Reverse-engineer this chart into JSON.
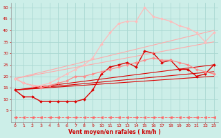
{
  "background_color": "#cceee8",
  "grid_color": "#aad8d2",
  "xlabel": "Vent moyen/en rafales ( km/h )",
  "xlabel_color": "#cc0000",
  "xlim": [
    -0.5,
    23.5
  ],
  "ylim": [
    0,
    52
  ],
  "yticks": [
    5,
    10,
    15,
    20,
    25,
    30,
    35,
    40,
    45,
    50
  ],
  "xticks": [
    0,
    1,
    2,
    3,
    4,
    5,
    6,
    7,
    8,
    9,
    10,
    11,
    12,
    13,
    14,
    15,
    16,
    17,
    18,
    19,
    20,
    21,
    22,
    23
  ],
  "series": [
    {
      "x": [
        0,
        1,
        2,
        3,
        4,
        5,
        6,
        7,
        8,
        9,
        10,
        11,
        12,
        13,
        14,
        15,
        16,
        17,
        18,
        19,
        20,
        21,
        22,
        23
      ],
      "y": [
        14,
        11,
        11,
        9,
        9,
        9,
        9,
        9,
        10,
        14,
        21,
        24,
        25,
        26,
        24,
        31,
        30,
        26,
        27,
        23,
        23,
        20,
        21,
        25
      ],
      "color": "#dd0000",
      "marker": "D",
      "markersize": 2.0,
      "linewidth": 1.0
    },
    {
      "x": [
        0,
        23
      ],
      "y": [
        14,
        25
      ],
      "color": "#dd0000",
      "marker": null,
      "markersize": 0,
      "linewidth": 0.8
    },
    {
      "x": [
        0,
        23
      ],
      "y": [
        14,
        22
      ],
      "color": "#dd0000",
      "marker": null,
      "markersize": 0,
      "linewidth": 0.8
    },
    {
      "x": [
        0,
        23
      ],
      "y": [
        14,
        20
      ],
      "color": "#dd0000",
      "marker": null,
      "markersize": 0,
      "linewidth": 0.8
    },
    {
      "x": [
        0,
        1,
        2,
        3,
        4,
        5,
        6,
        7,
        8,
        9,
        10,
        11,
        12,
        13,
        14,
        15,
        16,
        17,
        18,
        19,
        20,
        21,
        22,
        23
      ],
      "y": [
        19,
        17,
        16,
        15,
        16,
        17,
        18,
        20,
        20,
        21,
        22,
        23,
        24,
        25,
        26,
        27,
        28,
        27,
        27,
        26,
        25,
        23,
        22,
        21
      ],
      "color": "#ff8888",
      "marker": "D",
      "markersize": 2.0,
      "linewidth": 0.9
    },
    {
      "x": [
        0,
        23
      ],
      "y": [
        19,
        40
      ],
      "color": "#ffaaaa",
      "marker": null,
      "markersize": 0,
      "linewidth": 0.8
    },
    {
      "x": [
        0,
        23
      ],
      "y": [
        19,
        35
      ],
      "color": "#ffaaaa",
      "marker": null,
      "markersize": 0,
      "linewidth": 0.8
    },
    {
      "x": [
        0,
        1,
        2,
        3,
        4,
        5,
        6,
        7,
        8,
        9,
        10,
        11,
        12,
        13,
        14,
        15,
        16,
        17,
        18,
        19,
        20,
        21,
        22,
        23
      ],
      "y": [
        19,
        17,
        16,
        16,
        17,
        19,
        21,
        23,
        25,
        28,
        34,
        39,
        43,
        44,
        44,
        50,
        46,
        45,
        44,
        42,
        41,
        39,
        35,
        39
      ],
      "color": "#ffbbbb",
      "marker": "D",
      "markersize": 2.0,
      "linewidth": 0.9
    },
    {
      "x": [
        0,
        1,
        2,
        3,
        4,
        5,
        6,
        7,
        8,
        9,
        10,
        11,
        12,
        13,
        14,
        15,
        16,
        17,
        18,
        19,
        20,
        21,
        22,
        23
      ],
      "y": [
        2,
        2,
        2,
        2,
        2,
        2,
        2,
        2,
        2,
        2,
        2,
        2,
        2,
        2,
        2,
        2,
        2,
        2,
        2,
        2,
        2,
        2,
        2,
        2
      ],
      "color": "#ff6666",
      "marker": "<",
      "markersize": 3,
      "linewidth": 0.7,
      "linestyle": "--"
    }
  ]
}
